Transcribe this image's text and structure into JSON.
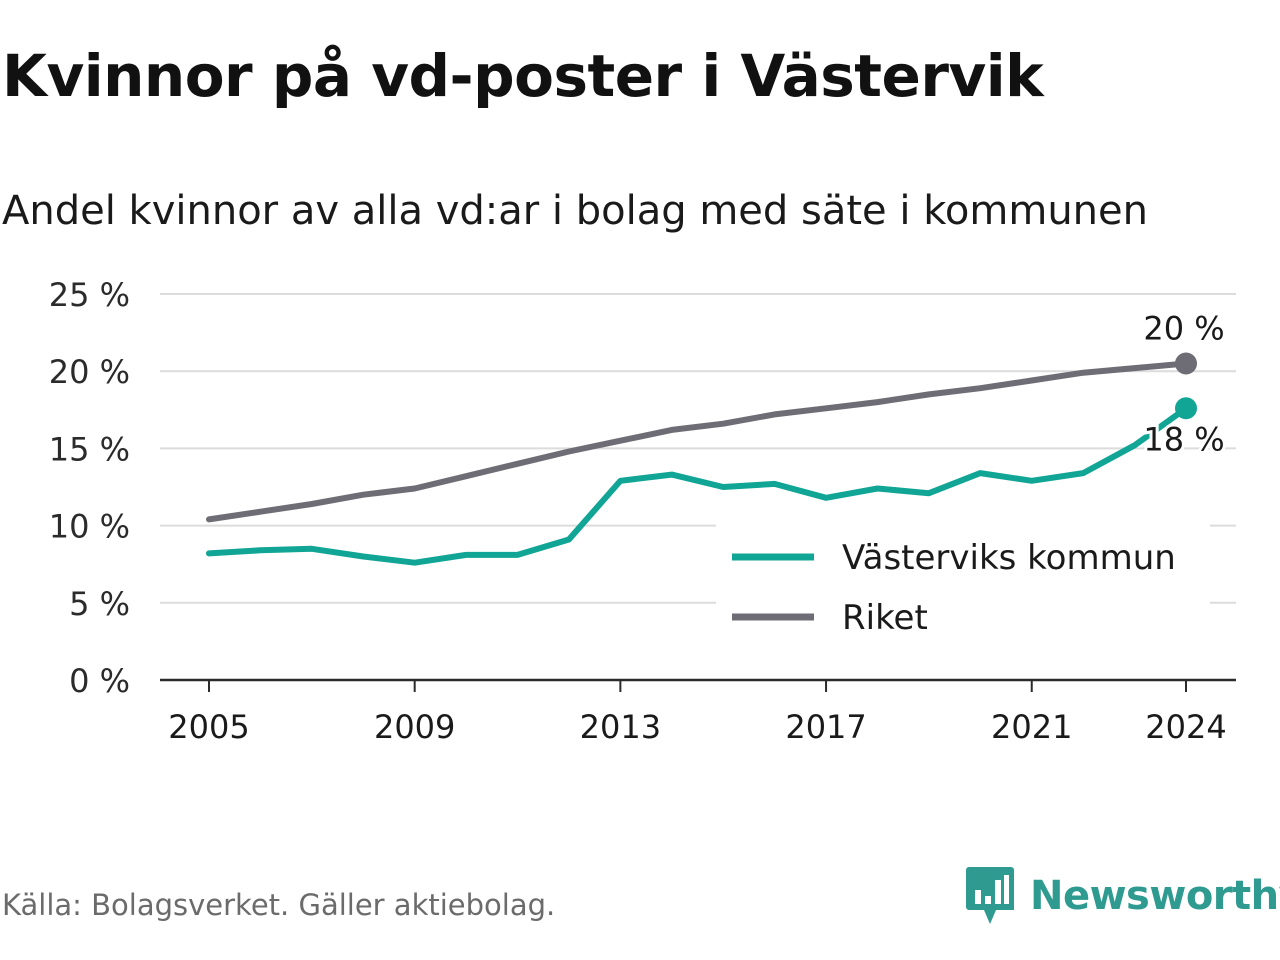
{
  "title": "Kvinnor på vd-poster i Västervik",
  "subtitle": "Andel kvinnor av alla vd:ar i bolag med säte i kommunen",
  "source": "Källa: Bolagsverket. Gäller aktiebolag.",
  "brand": {
    "name": "Newsworthy",
    "icon": "newsworthy-logo-icon",
    "color": "#2f9a8f"
  },
  "chart_data": {
    "type": "line",
    "x": [
      2005,
      2006,
      2007,
      2008,
      2009,
      2010,
      2011,
      2012,
      2013,
      2014,
      2015,
      2016,
      2017,
      2018,
      2019,
      2020,
      2021,
      2022,
      2023,
      2024
    ],
    "x_ticks": [
      2005,
      2009,
      2013,
      2017,
      2021,
      2024
    ],
    "y_ticks": [
      0,
      5,
      10,
      15,
      20,
      25
    ],
    "y_tick_labels": [
      "0 %",
      "5 %",
      "10 %",
      "15 %",
      "20 %",
      "25 %"
    ],
    "ylim": [
      0,
      25
    ],
    "grid": true,
    "legend_position": "bottom-right",
    "series": [
      {
        "name": "Västerviks kommun",
        "color": "#11a596",
        "values": [
          8.2,
          8.4,
          8.5,
          8.0,
          7.6,
          8.1,
          8.1,
          9.1,
          12.9,
          13.3,
          12.5,
          12.7,
          11.8,
          12.4,
          12.1,
          13.4,
          12.9,
          13.4,
          15.2,
          17.6
        ],
        "end_label": "18 %"
      },
      {
        "name": "Riket",
        "color": "#6e6d75",
        "values": [
          10.4,
          10.9,
          11.4,
          12.0,
          12.4,
          13.2,
          14.0,
          14.8,
          15.5,
          16.2,
          16.6,
          17.2,
          17.6,
          18.0,
          18.5,
          18.9,
          19.4,
          19.9,
          20.2,
          20.5
        ],
        "end_label": "20 %"
      }
    ]
  }
}
